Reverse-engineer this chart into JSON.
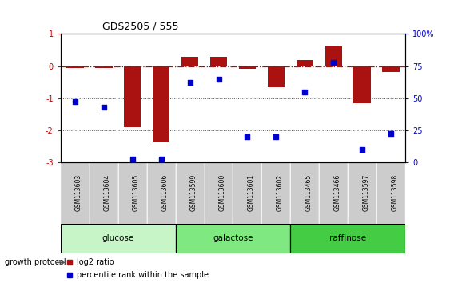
{
  "title": "GDS2505 / 555",
  "samples": [
    "GSM113603",
    "GSM113604",
    "GSM113605",
    "GSM113606",
    "GSM113599",
    "GSM113600",
    "GSM113601",
    "GSM113602",
    "GSM113465",
    "GSM113466",
    "GSM113597",
    "GSM113598"
  ],
  "log2_ratio": [
    -0.05,
    -0.05,
    -1.9,
    -2.35,
    0.3,
    0.28,
    -0.08,
    -0.65,
    0.2,
    0.6,
    -1.15,
    -0.18
  ],
  "percentile_rank": [
    47,
    43,
    2,
    2,
    62,
    65,
    20,
    20,
    55,
    78,
    10,
    22
  ],
  "groups": [
    {
      "label": "glucose",
      "start": 0,
      "end": 3,
      "color": "#c8f5c8"
    },
    {
      "label": "galactose",
      "start": 4,
      "end": 7,
      "color": "#80e880"
    },
    {
      "label": "raffinose",
      "start": 8,
      "end": 11,
      "color": "#44cc44"
    }
  ],
  "bar_color": "#aa1111",
  "dot_color": "#0000cc",
  "zero_line_color": "#cc0000",
  "dotted_line_color": "#555555",
  "ylim_left": [
    -3,
    1
  ],
  "ylim_right": [
    0,
    100
  ],
  "yticks_left": [
    1,
    0,
    -1,
    -2,
    -3
  ],
  "yticks_right": [
    100,
    75,
    50,
    25,
    0
  ],
  "ytick_labels_right": [
    "100%",
    "75",
    "50",
    "25",
    "0"
  ],
  "left_axis_color": "#cc0000",
  "right_axis_color": "#0000cc",
  "legend_items": [
    "log2 ratio",
    "percentile rank within the sample"
  ],
  "growth_protocol_label": "growth protocol",
  "sample_box_color": "#cccccc",
  "background_color": "#ffffff"
}
